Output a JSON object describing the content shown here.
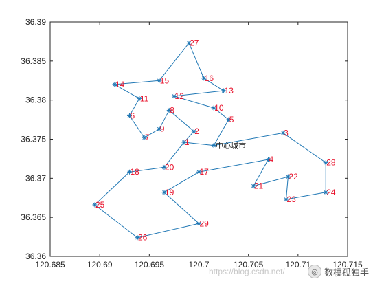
{
  "chart_data": {
    "type": "line",
    "title": "",
    "xlabel": "",
    "ylabel": "",
    "xlim": [
      120.685,
      120.715
    ],
    "ylim": [
      36.36,
      36.39
    ],
    "xticks": [
      "120.685",
      "120.69",
      "120.695",
      "120.7",
      "120.705",
      "120.71",
      "120.715"
    ],
    "yticks": [
      "36.36",
      "36.365",
      "36.37",
      "36.375",
      "36.38",
      "36.385",
      "36.39"
    ],
    "line_color": "#1f77b4",
    "label_color": "#e8102a",
    "center": {
      "label": "中心城市",
      "x": 120.7015,
      "y": 36.3742
    },
    "points": [
      {
        "label": "1",
        "x": 120.6985,
        "y": 36.3746
      },
      {
        "label": "2",
        "x": 120.6995,
        "y": 36.376
      },
      {
        "label": "3",
        "x": 120.7085,
        "y": 36.3758
      },
      {
        "label": "4",
        "x": 120.707,
        "y": 36.3724
      },
      {
        "label": "5",
        "x": 120.703,
        "y": 36.3775
      },
      {
        "label": "6",
        "x": 120.693,
        "y": 36.378
      },
      {
        "label": "7",
        "x": 120.6945,
        "y": 36.3752
      },
      {
        "label": "8",
        "x": 120.697,
        "y": 36.3787
      },
      {
        "label": "9",
        "x": 120.696,
        "y": 36.3763
      },
      {
        "label": "10",
        "x": 120.7015,
        "y": 36.379
      },
      {
        "label": "11",
        "x": 120.694,
        "y": 36.3802
      },
      {
        "label": "12",
        "x": 120.6975,
        "y": 36.3805
      },
      {
        "label": "13",
        "x": 120.7025,
        "y": 36.3812
      },
      {
        "label": "14",
        "x": 120.6915,
        "y": 36.382
      },
      {
        "label": "15",
        "x": 120.696,
        "y": 36.3825
      },
      {
        "label": "16",
        "x": 120.7005,
        "y": 36.3828
      },
      {
        "label": "17",
        "x": 120.7,
        "y": 36.3708
      },
      {
        "label": "18",
        "x": 120.693,
        "y": 36.3708
      },
      {
        "label": "19",
        "x": 120.6965,
        "y": 36.3682
      },
      {
        "label": "20",
        "x": 120.6965,
        "y": 36.3714
      },
      {
        "label": "21",
        "x": 120.7055,
        "y": 36.369
      },
      {
        "label": "22",
        "x": 120.709,
        "y": 36.3702
      },
      {
        "label": "23",
        "x": 120.7088,
        "y": 36.3673
      },
      {
        "label": "24",
        "x": 120.7128,
        "y": 36.3682
      },
      {
        "label": "25",
        "x": 120.6895,
        "y": 36.3666
      },
      {
        "label": "26",
        "x": 120.6938,
        "y": 36.3624
      },
      {
        "label": "27",
        "x": 120.699,
        "y": 36.3873
      },
      {
        "label": "28",
        "x": 120.7128,
        "y": 36.372
      },
      {
        "label": "29",
        "x": 120.7,
        "y": 36.3642
      }
    ],
    "route": [
      "center",
      "1",
      "2",
      "8",
      "9",
      "7",
      "6",
      "11",
      "14",
      "15",
      "27",
      "16",
      "13",
      "12",
      "10",
      "5",
      "center",
      "3",
      "28",
      "24",
      "23",
      "22",
      "21",
      "4",
      "17",
      "19",
      "29",
      "26",
      "25",
      "18",
      "20",
      "1"
    ]
  },
  "watermark": {
    "url": "https://blog.csdn.net/",
    "brand": "数模孤独手"
  }
}
